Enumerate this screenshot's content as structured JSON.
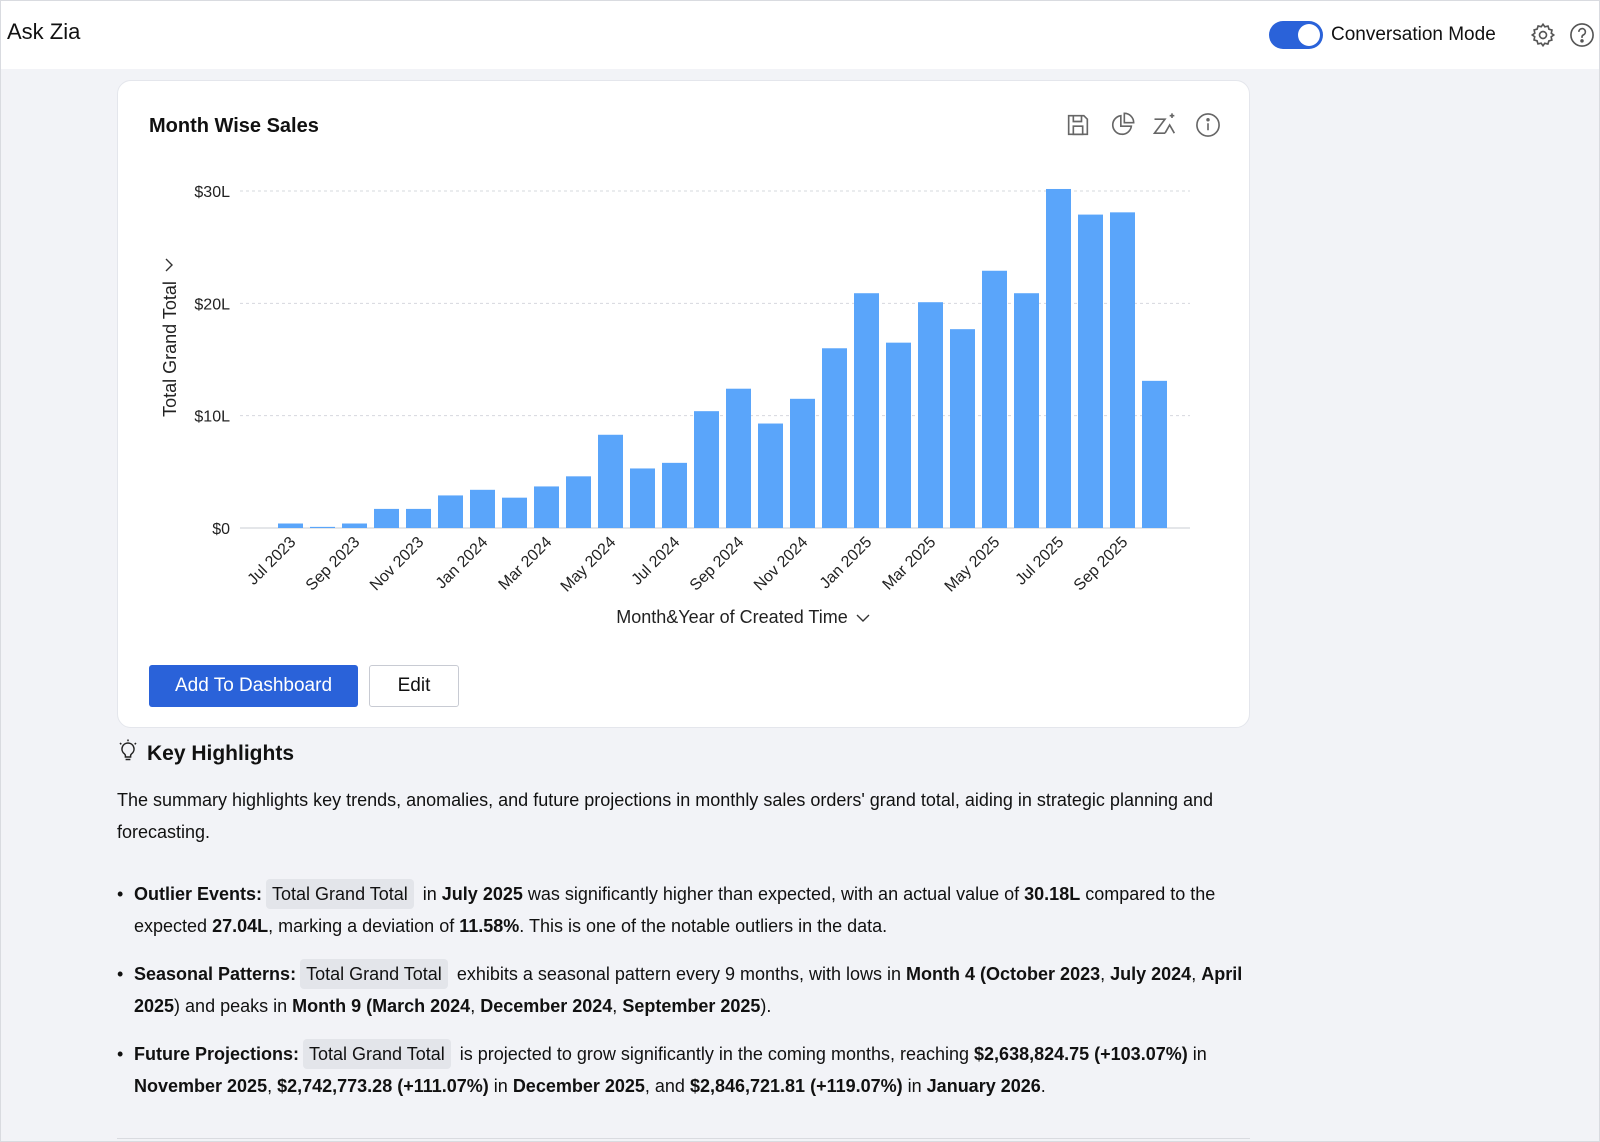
{
  "header": {
    "title": "Ask Zia",
    "conversation_mode_label": "Conversation Mode",
    "conversation_mode_on": true
  },
  "card": {
    "title": "Month Wise Sales",
    "add_button": "Add To Dashboard",
    "edit_button": "Edit"
  },
  "chart_data": {
    "type": "bar",
    "title": "Month Wise Sales",
    "xlabel": "Month&Year of Created Time",
    "ylabel": "Total Grand Total",
    "ylim": [
      0,
      30
    ],
    "y_unit": "L",
    "y_ticks": [
      "$0",
      "$10L",
      "$20L",
      "$30L"
    ],
    "y_tick_values": [
      0,
      10,
      20,
      30
    ],
    "grid": true,
    "bar_color": "#5aa5fa",
    "categories": [
      "Jul 2023",
      "Aug 2023",
      "Sep 2023",
      "Oct 2023",
      "Nov 2023",
      "Dec 2023",
      "Jan 2024",
      "Feb 2024",
      "Mar 2024",
      "Apr 2024",
      "May 2024",
      "Jun 2024",
      "Jul 2024",
      "Aug 2024",
      "Sep 2024",
      "Oct 2024",
      "Nov 2024",
      "Dec 2024",
      "Jan 2025",
      "Feb 2025",
      "Mar 2025",
      "Apr 2025",
      "May 2025",
      "Jun 2025",
      "Jul 2025",
      "Aug 2025",
      "Sep 2025",
      "Oct 2025"
    ],
    "values": [
      0.4,
      0.1,
      0.4,
      1.7,
      1.7,
      2.9,
      3.4,
      2.7,
      3.7,
      4.6,
      8.3,
      5.3,
      5.8,
      10.4,
      12.4,
      9.3,
      11.5,
      16.0,
      20.9,
      16.5,
      20.1,
      17.7,
      22.9,
      20.9,
      30.18,
      27.9,
      28.1,
      13.1
    ],
    "x_tick_labels": [
      "Jul 2023",
      "Sep 2023",
      "Nov 2023",
      "Jan 2024",
      "Mar 2024",
      "May 2024",
      "Jul 2024",
      "Sep 2024",
      "Nov 2024",
      "Jan 2025",
      "Mar 2025",
      "May 2025",
      "Jul 2025",
      "Sep 2025"
    ]
  },
  "highlights": {
    "title": "Key Highlights",
    "summary": "The summary highlights key trends, anomalies, and future projections in monthly sales orders' grand total, aiding in strategic planning and forecasting.",
    "chip": "Total Grand Total",
    "outlier": {
      "label": "Outlier Events:",
      "t1": " in ",
      "b1": "July 2025",
      "t2": " was significantly higher than expected, with an actual value of ",
      "b2": "30.18L",
      "t3": " compared to the expected ",
      "b3": "27.04L",
      "t4": ", marking a deviation of ",
      "b4": "11.58%",
      "t5": ". This is one of the notable outliers in the data."
    },
    "seasonal": {
      "label": "Seasonal Patterns:",
      "t1": " exhibits a seasonal pattern every 9 months, with lows in ",
      "b1": "Month 4",
      "b2": " (October 2023",
      "t2": ", ",
      "b3": "July 2024",
      "t3": ", ",
      "b4": "April 2025",
      "t4": ") and peaks in ",
      "b5": "Month 9",
      "b6": " (March 2024",
      "t5": ", ",
      "b7": "December 2024",
      "t6": ", ",
      "b8": "September 2025",
      "t7": ")."
    },
    "projection": {
      "label": "Future Projections:",
      "t1": " is projected to grow significantly in the coming months, reaching ",
      "b1": "$2,638,824.75",
      "b2": " (+103.07%)",
      "t2": " in ",
      "b3": "November 2025",
      "t3": ", ",
      "b4": "$2,742,773.28",
      "b5": " (+111.07%)",
      "t4": " in ",
      "b6": "December 2025",
      "t5": ", and ",
      "b7": "$2,846,721.81",
      "b8": " (+119.07%)",
      "t6": " in ",
      "b9": "January 2026",
      "t7": "."
    }
  }
}
